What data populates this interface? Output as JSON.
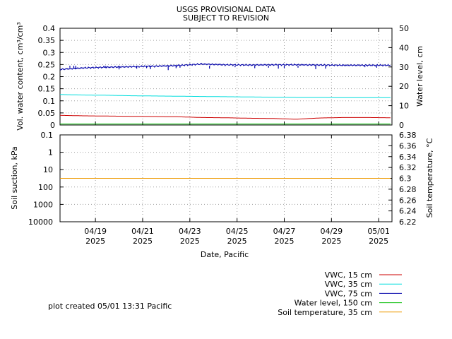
{
  "header": {
    "title_line1": "USGS PROVISIONAL DATA",
    "title_line2": "SUBJECT TO REVISION"
  },
  "footer": {
    "created_note": "plot created 05/01 13:31 Pacific"
  },
  "chart_data": [
    {
      "type": "line",
      "panel": "top",
      "xlabel": "Date, Pacific",
      "ylabel_left": "Vol. water content, cm³/cm³",
      "ylabel_right": "Water level, cm",
      "ylim_left": [
        0,
        0.4
      ],
      "ylim_right": [
        0,
        50
      ],
      "yticks_left": [
        "0",
        "0.05",
        "0.1",
        "0.15",
        "0.2",
        "0.25",
        "0.3",
        "0.35",
        "0.4"
      ],
      "yticks_right": [
        "0",
        "10",
        "20",
        "30",
        "40",
        "50"
      ],
      "x_range": [
        "2025-04-17 12:00",
        "2025-05-01 13:31"
      ],
      "grid": true,
      "series": [
        {
          "name": "VWC, 15 cm",
          "color": "#cc0000",
          "axis": "left",
          "x": [
            "04/17 12:00",
            "04/18 12:00",
            "04/19 12:00",
            "04/20 12:00",
            "04/21 12:00",
            "04/22 12:00",
            "04/23 12:00",
            "04/24 12:00",
            "04/25 12:00",
            "04/26 12:00",
            "04/27 12:00",
            "04/28 12:00",
            "04/29 12:00",
            "04/30 12:00",
            "05/01 12:00"
          ],
          "values": [
            0.04,
            0.038,
            0.037,
            0.036,
            0.035,
            0.034,
            0.031,
            0.03,
            0.028,
            0.027,
            0.024,
            0.029,
            0.031,
            0.031,
            0.03
          ]
        },
        {
          "name": "VWC, 35 cm",
          "color": "#00dddd",
          "axis": "left",
          "x": [
            "04/17 12:00",
            "04/18 12:00",
            "04/19 12:00",
            "04/20 12:00",
            "04/21 12:00",
            "04/22 12:00",
            "04/23 12:00",
            "04/24 12:00",
            "04/25 12:00",
            "04/26 12:00",
            "04/27 12:00",
            "04/28 12:00",
            "04/29 12:00",
            "04/30 12:00",
            "05/01 12:00"
          ],
          "values": [
            0.126,
            0.124,
            0.123,
            0.121,
            0.12,
            0.119,
            0.118,
            0.117,
            0.116,
            0.115,
            0.114,
            0.114,
            0.113,
            0.113,
            0.113
          ]
        },
        {
          "name": "VWC, 75 cm",
          "color": "#0000aa",
          "axis": "left",
          "x": [
            "04/17 12:00",
            "04/18 12:00",
            "04/19 12:00",
            "04/20 12:00",
            "04/21 12:00",
            "04/22 12:00",
            "04/23 12:00",
            "04/24 12:00",
            "04/25 12:00",
            "04/26 12:00",
            "04/27 12:00",
            "04/28 12:00",
            "04/29 12:00",
            "04/30 12:00",
            "05/01 12:00"
          ],
          "values": [
            0.23,
            0.236,
            0.239,
            0.241,
            0.243,
            0.246,
            0.252,
            0.249,
            0.248,
            0.249,
            0.249,
            0.248,
            0.247,
            0.247,
            0.247
          ]
        },
        {
          "name": "Water level, 150 cm",
          "color": "#00bb00",
          "axis": "right",
          "x": [
            "04/17 12:00",
            "05/01 12:00"
          ],
          "values": [
            0.5,
            0.5
          ]
        }
      ]
    },
    {
      "type": "line",
      "panel": "bottom",
      "ylabel_left": "Soil suction, kPa",
      "ylabel_right": "Soil temperature, °C",
      "yscale_left": "log, inverted",
      "ylim_left": [
        0.1,
        10000
      ],
      "ylim_right": [
        6.22,
        6.38
      ],
      "yticks_left": [
        "0.1",
        "1",
        "10",
        "100",
        "1000",
        "10000"
      ],
      "yticks_right": [
        "6.22",
        "6.24",
        "6.26",
        "6.28",
        "6.3",
        "6.32",
        "6.34",
        "6.36",
        "6.38"
      ],
      "xticks": [
        {
          "x": "04/19",
          "year": "2025"
        },
        {
          "x": "04/21",
          "year": "2025"
        },
        {
          "x": "04/23",
          "year": "2025"
        },
        {
          "x": "04/25",
          "year": "2025"
        },
        {
          "x": "04/27",
          "year": "2025"
        },
        {
          "x": "04/29",
          "year": "2025"
        },
        {
          "x": "05/01",
          "year": "2025"
        }
      ],
      "grid": true,
      "series": [
        {
          "name": "Soil temperature, 35 cm",
          "color": "#ee9900",
          "axis": "right",
          "x": [
            "04/17 12:00",
            "05/01 12:00"
          ],
          "values": [
            6.3,
            6.3
          ]
        }
      ]
    }
  ],
  "legend": [
    {
      "label": "VWC, 15 cm",
      "color": "#cc0000"
    },
    {
      "label": "VWC, 35 cm",
      "color": "#00dddd"
    },
    {
      "label": "VWC, 75 cm",
      "color": "#0000aa"
    },
    {
      "label": "Water level, 150 cm",
      "color": "#00bb00"
    },
    {
      "label": "Soil temperature, 35 cm",
      "color": "#ee9900"
    }
  ]
}
